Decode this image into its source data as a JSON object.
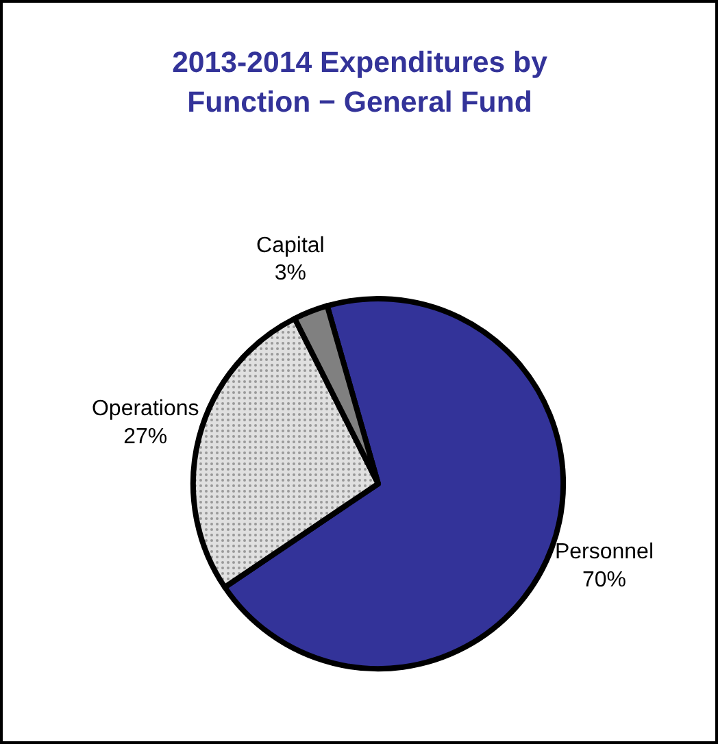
{
  "chart_data": {
    "type": "pie",
    "title": "2013-2014 Expenditures by\nFunction − General Fund",
    "categories": [
      "Personnel",
      "Operations",
      "Capital"
    ],
    "values": [
      70,
      27,
      3
    ],
    "colors": [
      "#333399",
      "#e0e0e0",
      "#808080"
    ],
    "value_labels": [
      "70%",
      "27%",
      "3%"
    ]
  }
}
